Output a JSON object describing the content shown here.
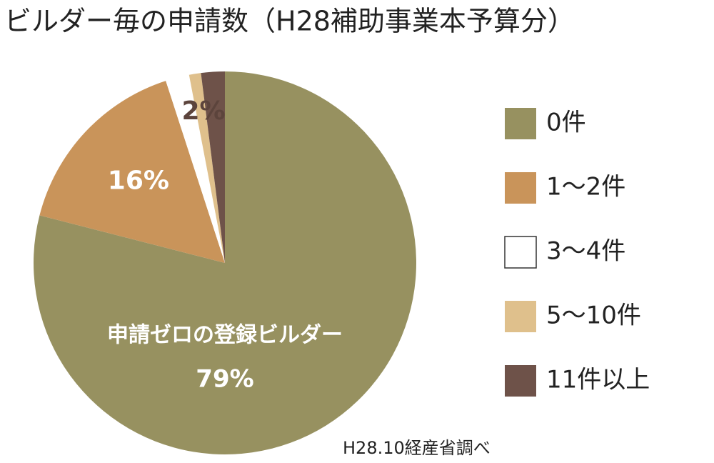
{
  "chart_data": {
    "type": "pie",
    "title": "ビルダー毎の申請数（H28補助事業本予算分）",
    "annotation": "申請ゼロの登録ビルダー",
    "source": "H28.10経産省調べ",
    "categories": [
      "0件",
      "1～2件",
      "3～4件",
      "5～10件",
      "11件以上"
    ],
    "values": [
      79,
      16,
      2,
      1,
      2
    ],
    "value_labels": [
      "79%",
      "16%",
      null,
      null,
      "2%"
    ],
    "colors": [
      "#979160",
      "#c9945a",
      "#ffffff",
      "#dfc08c",
      "#6e5249"
    ],
    "legend": "right"
  }
}
